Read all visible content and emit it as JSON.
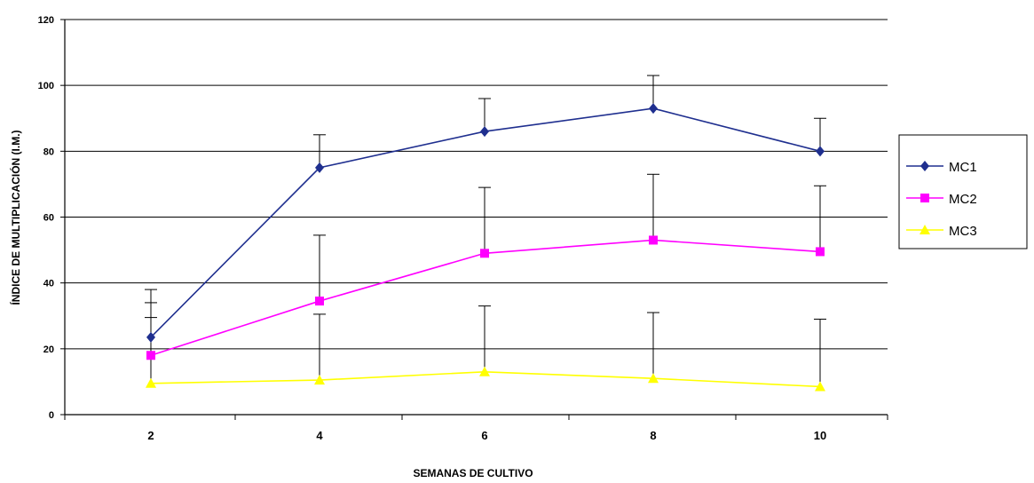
{
  "chart_data": {
    "type": "line",
    "title": "",
    "xlabel": "SEMANAS DE CULTIVO",
    "ylabel": "ÍNDICE DE MULTIPLICACIÓN (I.M.)",
    "x": [
      2,
      4,
      6,
      8,
      10
    ],
    "ylim": [
      0,
      120
    ],
    "yticks": [
      0,
      20,
      40,
      60,
      80,
      100,
      120
    ],
    "grid": true,
    "legend_position": "right",
    "series": [
      {
        "name": "MC1",
        "color": "#1f2f8f",
        "marker": "diamond",
        "values": [
          23.5,
          75,
          86,
          93,
          80
        ],
        "error_upper": [
          38,
          85,
          96,
          103,
          90
        ]
      },
      {
        "name": "MC2",
        "color": "#ff00ff",
        "marker": "square",
        "values": [
          18,
          34.5,
          49,
          53,
          49.5
        ],
        "error_upper": [
          34,
          54.5,
          69,
          73,
          69.5
        ]
      },
      {
        "name": "MC3",
        "color": "#ffff00",
        "marker": "triangle",
        "values": [
          9.5,
          10.5,
          13,
          11,
          8.5
        ],
        "error_upper": [
          29.5,
          30.5,
          33,
          31,
          29
        ]
      }
    ]
  }
}
